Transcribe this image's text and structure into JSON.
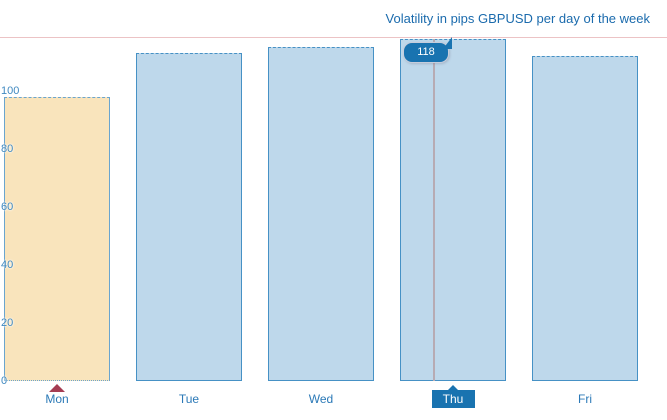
{
  "title": "Volatility in pips GBPUSD per day of the week",
  "chart_data": {
    "type": "bar",
    "title": "Volatility in pips GBPUSD per day of the week",
    "categories": [
      "Mon",
      "Tue",
      "Wed",
      "Thu",
      "Fri"
    ],
    "values": [
      98,
      113,
      115,
      118,
      112
    ],
    "xlabel": "",
    "ylabel": "",
    "ylim": [
      0,
      119
    ],
    "yticks": [
      0,
      20,
      40,
      60,
      80,
      100
    ],
    "grid": false,
    "legend": false,
    "highlighted_category": "Mon",
    "selected_category": "Thu",
    "tooltip": {
      "category": "Thu",
      "value": "118"
    }
  },
  "colors": {
    "title_text": "#1b6bad",
    "bar_fill": "#bed8eb",
    "bar_border": "#4691c5",
    "highlight_fill": "#f9e4bc",
    "highlight_border": "#6aa5cf",
    "selected_box": "#1973b0",
    "tooltip_bg": "#1973b0",
    "tooltip_text": "#ffffff",
    "axis_label_text": "#4089c0",
    "day_label_text": "#2b79b7",
    "top_line": "#ecc3c5",
    "crosshair": "#b7abb3",
    "marker_triangle": "#a53c52"
  }
}
